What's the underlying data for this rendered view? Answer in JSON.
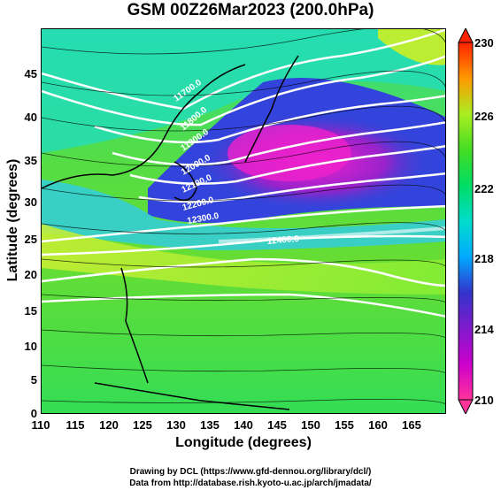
{
  "figure": {
    "title": "GSM 00Z26Mar2023 (200.0hPa)",
    "xlabel": "Longitude (degrees)",
    "ylabel": "Latitude  (degrees)",
    "credit_line_1": "Drawing by DCL (https://www.gfd-dennou.org/library/dcl/)",
    "credit_line_2": "Data from http://database.rish.kyoto-u.ac.jp/arch/jmadata/"
  },
  "axes": {
    "x_ticks": [
      "110",
      "115",
      "120",
      "125",
      "130",
      "135",
      "140",
      "145",
      "150",
      "155",
      "160",
      "165"
    ],
    "y_ticks": [
      "45",
      "40",
      "35",
      "30",
      "25",
      "20",
      "15",
      "10",
      "5",
      "0"
    ],
    "xlim": [
      110,
      170
    ],
    "ylim": [
      0,
      50
    ]
  },
  "colorbar": {
    "ticks": [
      "230",
      "226",
      "222",
      "218",
      "214",
      "210"
    ],
    "range": [
      210,
      230
    ],
    "colors": [
      "#ff3399",
      "#cc00cc",
      "#3333cc",
      "#00ccff",
      "#00dd88",
      "#44dd22",
      "#aaee22",
      "#ff9900",
      "#ff2200"
    ]
  },
  "contour_labels": [
    "11700.0",
    "11800.0",
    "11900.0",
    "12000.0",
    "12100.0",
    "12200.0",
    "12300.0",
    "12400.0"
  ]
}
